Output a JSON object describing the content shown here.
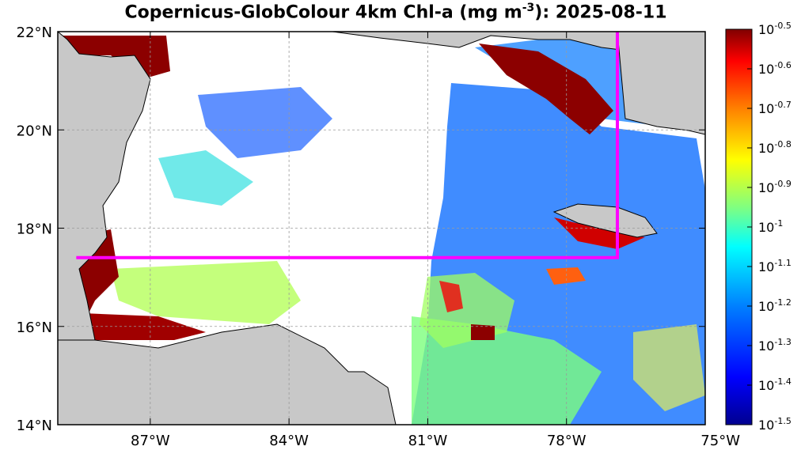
{
  "title": {
    "prefix": "Copernicus-GlobColour 4km Chl-a (mg m",
    "exponent": "-3",
    "suffix": "): 2025-08-11"
  },
  "map": {
    "lon_range": [
      -89,
      -75
    ],
    "lat_range": [
      14,
      22
    ],
    "lon_ticks": [
      {
        "value": -87,
        "label": "87°W"
      },
      {
        "value": -84,
        "label": "84°W"
      },
      {
        "value": -81,
        "label": "81°W"
      },
      {
        "value": -78,
        "label": "78°W"
      },
      {
        "value": -75,
        "label": "75°W"
      }
    ],
    "lat_ticks": [
      {
        "value": 22,
        "label": "22°N"
      },
      {
        "value": 20,
        "label": "20°N"
      },
      {
        "value": 18,
        "label": "18°N"
      },
      {
        "value": 16,
        "label": "16°N"
      },
      {
        "value": 14,
        "label": "14°N"
      }
    ],
    "grid": true,
    "land_color": "#c8c8c8",
    "boundary_color": "#ff00ff",
    "boundary_path_lonlat": [
      [
        -88.6,
        17.4
      ],
      [
        -76.9,
        17.4
      ],
      [
        -76.9,
        22
      ]
    ]
  },
  "colorbar": {
    "scale": "log10",
    "range": [
      -1.5,
      -0.5
    ],
    "colors": [
      "#00008f",
      "#0000ff",
      "#0080ff",
      "#00ffff",
      "#80ff80",
      "#ffff00",
      "#ff8000",
      "#ff0000",
      "#800000"
    ],
    "labels": [
      {
        "base": "10",
        "exp": "-0.5"
      },
      {
        "base": "10",
        "exp": "-0.6"
      },
      {
        "base": "10",
        "exp": "-0.7"
      },
      {
        "base": "10",
        "exp": "-0.8"
      },
      {
        "base": "10",
        "exp": "-0.9"
      },
      {
        "base": "10",
        "exp": "-1"
      },
      {
        "base": "10",
        "exp": "-1.1"
      },
      {
        "base": "10",
        "exp": "-1.2"
      },
      {
        "base": "10",
        "exp": "-1.3"
      },
      {
        "base": "10",
        "exp": "-1.4"
      },
      {
        "base": "10",
        "exp": "-1.5"
      }
    ]
  }
}
